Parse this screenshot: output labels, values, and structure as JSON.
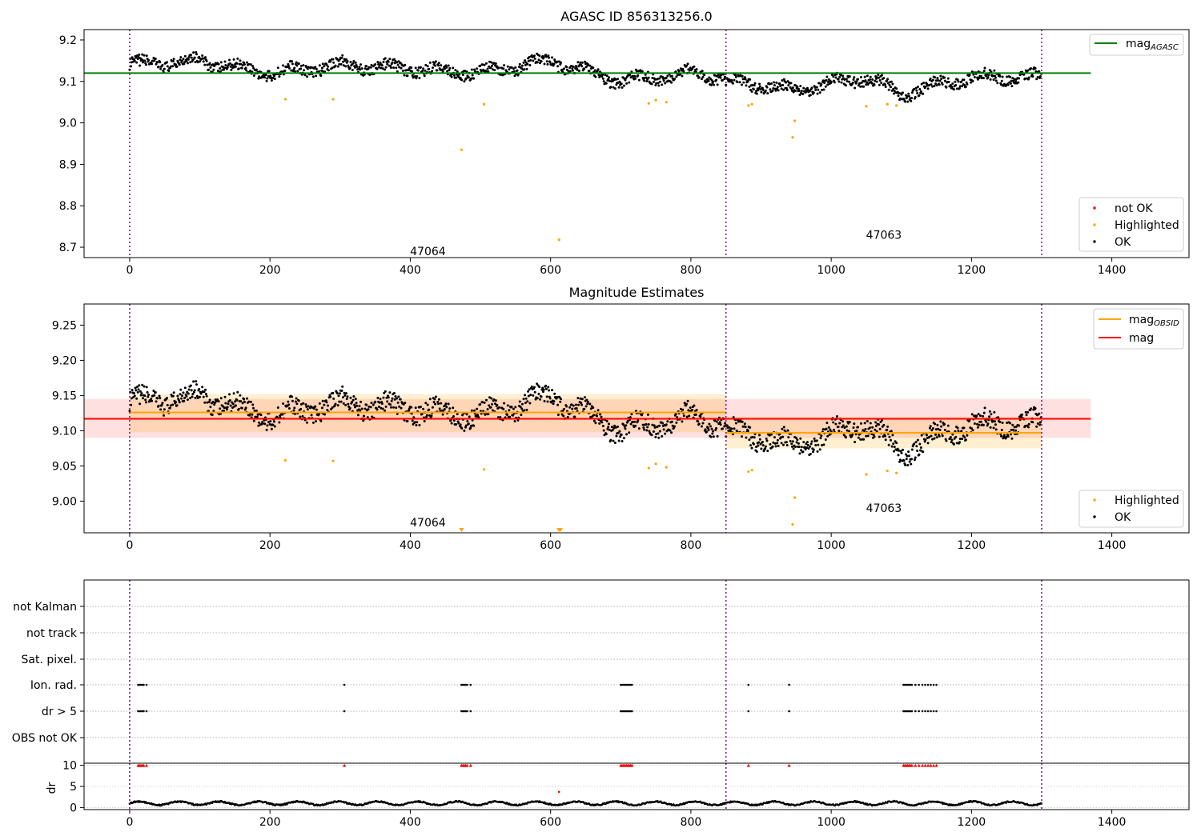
{
  "figure": {
    "obsid_boundaries": [
      0,
      850,
      1300
    ],
    "obsid_labels": [
      {
        "text": "47064",
        "x": 400
      },
      {
        "text": "47063",
        "x": 1050
      }
    ]
  },
  "chart_data": [
    {
      "type": "scatter",
      "title": "AGASC ID 856313256.0",
      "xlim": [
        -65,
        1510
      ],
      "ylim": [
        8.675,
        9.225
      ],
      "xticks": [
        0,
        200,
        400,
        600,
        800,
        1000,
        1200,
        1400
      ],
      "yticks": [
        8.7,
        8.8,
        8.9,
        9.0,
        9.1,
        9.2
      ],
      "obsid_label_y": [
        8.69,
        8.73
      ],
      "ok_series": {
        "name": "OK",
        "color": "#000000",
        "segments": [
          {
            "x": [
              0,
              100,
              200,
              300,
              400,
              500,
              600,
              700,
              800,
              850
            ],
            "y": [
              9.14,
              9.15,
              9.12,
              9.14,
              9.13,
              9.12,
              9.15,
              9.1,
              9.12,
              9.11
            ]
          },
          {
            "x": [
              850,
              950,
              1050,
              1100,
              1150,
              1200,
              1300
            ],
            "y": [
              9.1,
              9.08,
              9.11,
              9.07,
              9.09,
              9.11,
              9.11
            ]
          }
        ],
        "noise": 0.017
      },
      "highlighted": {
        "name": "Highlighted",
        "color": "#ffa500",
        "x": [
          222,
          290,
          473,
          505,
          612,
          740,
          750,
          765,
          882,
          887,
          945,
          948,
          1050,
          1080,
          1093
        ],
        "y": [
          9.057,
          9.057,
          8.935,
          9.045,
          8.718,
          9.047,
          9.055,
          9.05,
          9.042,
          9.045,
          8.965,
          9.005,
          9.04,
          9.045,
          9.042
        ]
      },
      "lines": [
        {
          "name": "mag_AGASC",
          "label_main": "mag",
          "label_sub": "AGASC",
          "color": "#008000",
          "y": 9.12,
          "x": [
            -65,
            1370
          ]
        }
      ],
      "legend_lines": [
        {
          "label_main": "mag",
          "label_sub": "AGASC",
          "color": "#008000"
        }
      ],
      "legend_points": [
        {
          "label": "not OK",
          "color": "#ff0000"
        },
        {
          "label": "Highlighted",
          "color": "#ffa500"
        },
        {
          "label": "OK",
          "color": "#000000"
        }
      ]
    },
    {
      "type": "scatter",
      "title": "Magnitude Estimates",
      "xlim": [
        -65,
        1510
      ],
      "ylim": [
        8.955,
        9.28
      ],
      "xticks": [
        0,
        200,
        400,
        600,
        800,
        1000,
        1200,
        1400
      ],
      "yticks": [
        9.0,
        9.05,
        9.1,
        9.15,
        9.2,
        9.25
      ],
      "obsid_label_y": [
        8.97,
        8.99
      ],
      "ok_series": {
        "name": "OK",
        "color": "#000000",
        "segments": [
          {
            "x": [
              0,
              100,
              200,
              300,
              400,
              500,
              600,
              700,
              800,
              850
            ],
            "y": [
              9.14,
              9.15,
              9.12,
              9.14,
              9.13,
              9.12,
              9.15,
              9.1,
              9.12,
              9.11
            ]
          },
          {
            "x": [
              850,
              950,
              1050,
              1100,
              1150,
              1200,
              1300
            ],
            "y": [
              9.1,
              9.08,
              9.11,
              9.07,
              9.09,
              9.11,
              9.11
            ]
          }
        ],
        "noise": 0.017
      },
      "highlighted": {
        "name": "Highlighted",
        "color": "#ffa500",
        "x": [
          222,
          290,
          505,
          740,
          750,
          765,
          882,
          887,
          945,
          948,
          1050,
          1080,
          1093
        ],
        "y": [
          9.058,
          9.057,
          9.045,
          9.047,
          9.053,
          9.048,
          9.042,
          9.044,
          8.967,
          9.005,
          9.038,
          9.043,
          9.04
        ]
      },
      "off_scale_markers": {
        "x": [
          473,
          612,
          614
        ],
        "color": "#ffa500"
      },
      "bands": [
        {
          "x": [
            -65,
            1370
          ],
          "y": [
            9.09,
            9.145
          ],
          "color": "rgba(255,0,0,0.12)"
        },
        {
          "x": [
            0,
            850
          ],
          "y": [
            9.098,
            9.152
          ],
          "color": "rgba(255,165,0,0.18)"
        },
        {
          "x": [
            850,
            1300
          ],
          "y": [
            9.075,
            9.12
          ],
          "color": "rgba(255,165,0,0.18)"
        }
      ],
      "lines": [
        {
          "name": "mag_OBSID",
          "color": "#ffa500",
          "segments": [
            {
              "x": [
                0,
                850
              ],
              "y": 9.126
            },
            {
              "x": [
                850,
                1300
              ],
              "y": 9.097
            }
          ]
        },
        {
          "name": "mag",
          "color": "#ff0000",
          "segments": [
            {
              "x": [
                -65,
                1370
              ],
              "y": 9.117
            }
          ]
        }
      ],
      "legend_lines": [
        {
          "label_main": "mag",
          "label_sub": "OBSID",
          "color": "#ffa500"
        },
        {
          "label_main": "mag",
          "label_sub": "",
          "color": "#ff0000"
        }
      ],
      "legend_points": [
        {
          "label": "Highlighted",
          "color": "#ffa500"
        },
        {
          "label": "OK",
          "color": "#000000"
        }
      ]
    },
    {
      "type": "scatter",
      "title": "",
      "xlim": [
        -65,
        1510
      ],
      "categories": [
        "OBS not OK",
        "dr > 5",
        "Ion. rad.",
        "Sat. pixel.",
        "not track",
        "not Kalman"
      ],
      "flag_points": {
        "dr > 5": [
          12,
          14,
          16,
          18,
          20,
          24,
          306,
          473,
          475,
          477,
          479,
          481,
          486,
          700,
          702,
          704,
          706,
          708,
          710,
          712,
          714,
          716,
          882,
          940,
          1103,
          1105,
          1107,
          1109,
          1111,
          1113,
          1115,
          1120,
          1125,
          1130,
          1134,
          1138,
          1142,
          1146,
          1150
        ],
        "Ion. rad.": [
          12,
          14,
          16,
          18,
          20,
          24,
          306,
          473,
          475,
          477,
          479,
          481,
          486,
          700,
          702,
          704,
          706,
          708,
          710,
          712,
          714,
          716,
          882,
          940,
          1103,
          1105,
          1107,
          1109,
          1111,
          1113,
          1115,
          1120,
          1125,
          1130,
          1134,
          1138,
          1142,
          1146,
          1150
        ]
      }
    },
    {
      "type": "scatter",
      "title": "",
      "ylabel": "dr",
      "xlim": [
        -65,
        1510
      ],
      "ylim": [
        -0.5,
        10.5
      ],
      "xticks": [
        0,
        200,
        400,
        600,
        800,
        1000,
        1200,
        1400
      ],
      "yticks": [
        0,
        5,
        10
      ],
      "dr_series": {
        "x_range": [
          0,
          1300
        ],
        "baseline": 1.0,
        "amplitude": 0.6,
        "color": "#000000"
      },
      "dr_outliers": {
        "x": [
          612
        ],
        "y": [
          3.7
        ],
        "color": "#ff0000"
      },
      "capped": {
        "y": 10,
        "color": "#ff0000",
        "x": [
          12,
          14,
          16,
          18,
          20,
          24,
          306,
          473,
          475,
          477,
          479,
          481,
          486,
          700,
          702,
          704,
          706,
          708,
          710,
          712,
          714,
          716,
          882,
          940,
          1103,
          1105,
          1107,
          1109,
          1111,
          1113,
          1115,
          1120,
          1125,
          1130,
          1134,
          1138,
          1142,
          1146,
          1150
        ]
      }
    }
  ]
}
